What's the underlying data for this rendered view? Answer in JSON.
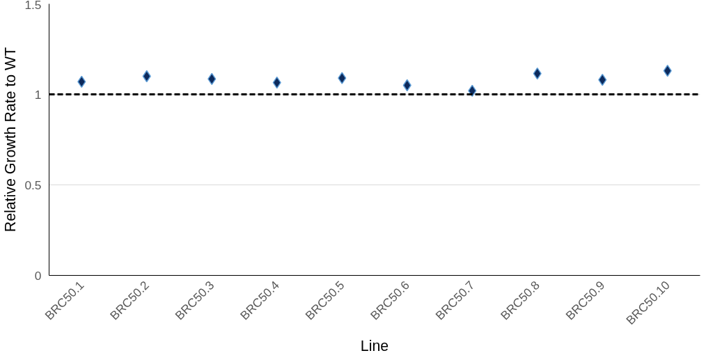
{
  "chart_data": {
    "type": "scatter",
    "xlabel": "Line",
    "ylabel": "Relative Growth Rate to WT",
    "categories": [
      "BRC50.1",
      "BRC50.2",
      "BRC50.3",
      "BRC50.4",
      "BRC50.5",
      "BRC50.6",
      "BRC50.7",
      "BRC50.8",
      "BRC50.9",
      "BRC50.10"
    ],
    "series": [
      {
        "color": "#0d2a5c",
        "values": [
          1.07,
          1.1,
          1.085,
          1.065,
          1.09,
          1.05,
          1.02,
          1.115,
          1.08,
          1.13
        ]
      }
    ],
    "marker": "diamond",
    "ylim": [
      0,
      1.5
    ],
    "yticks": [
      0,
      0.5,
      1,
      1.5
    ],
    "grid": "y",
    "ref_lines": [
      {
        "axis": "y",
        "value": 1,
        "color": "#000000",
        "line_style": "dashed"
      }
    ]
  }
}
